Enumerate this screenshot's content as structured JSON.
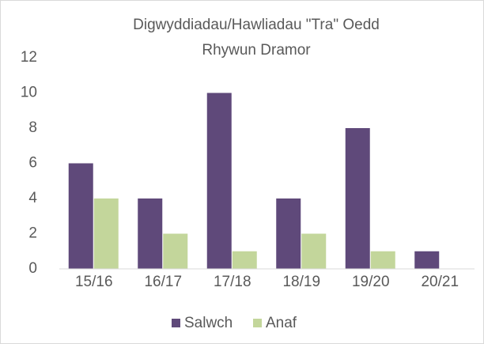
{
  "chart_data": {
    "type": "bar",
    "title": [
      "Digwyddiadau/Hawliadau \"Tra\" Oedd",
      "Rhywun Dramor"
    ],
    "categories": [
      "15/16",
      "16/17",
      "17/18",
      "18/19",
      "19/20",
      "20/21"
    ],
    "series": [
      {
        "name": "Salwch",
        "color": "#5f497a",
        "values": [
          6,
          4,
          10,
          4,
          8,
          1
        ]
      },
      {
        "name": "Anaf",
        "color": "#c3d69b",
        "values": [
          4,
          2,
          1,
          2,
          1,
          0
        ]
      }
    ],
    "ylim": [
      0,
      12
    ],
    "yticks": [
      0,
      2,
      4,
      6,
      8,
      10,
      12
    ],
    "grid": false,
    "legend": "bottom"
  }
}
